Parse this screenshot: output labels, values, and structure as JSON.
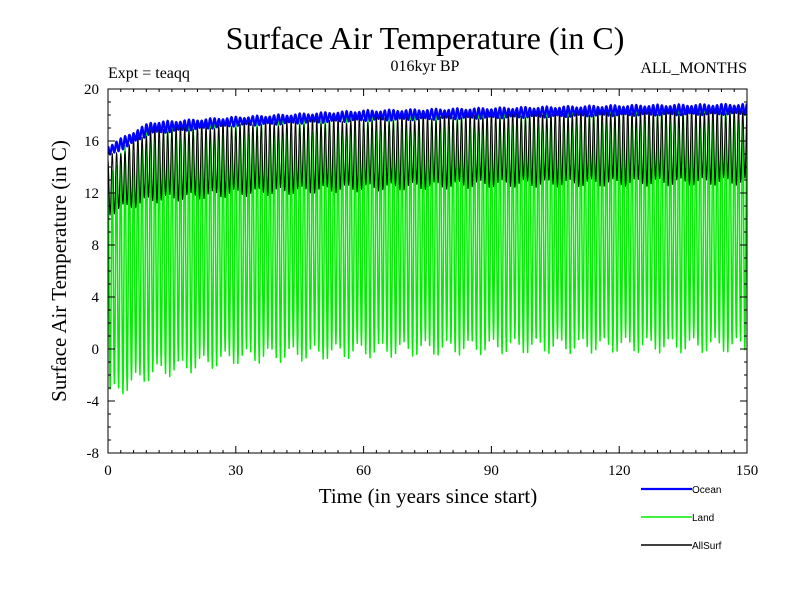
{
  "chart_data": {
    "type": "line",
    "title": "Surface Air Temperature (in C)",
    "experiment_label": "Expt = teaqq",
    "period_label": "016kyr BP",
    "months_label": "ALL_MONTHS",
    "xlabel": "Time (in years since start)",
    "ylabel": "Surface Air Temperature (in C)",
    "xlim": [
      0,
      150
    ],
    "ylim": [
      -8,
      20
    ],
    "x_ticks": [
      0,
      30,
      60,
      90,
      120,
      150
    ],
    "y_ticks": [
      -8,
      -4,
      0,
      4,
      8,
      12,
      16,
      20
    ],
    "x_tick_labels": [
      "0",
      "30",
      "60",
      "90",
      "120",
      "150"
    ],
    "y_tick_labels": [
      "-8",
      "-4",
      "0",
      "4",
      "8",
      "12",
      "16",
      "20"
    ],
    "sampling": "monthly values, seasonal cycle (12 per year)",
    "series": [
      {
        "name": "Ocean",
        "color": "#0000ff",
        "summary_years": [
          0,
          10,
          30,
          60,
          90,
          120,
          150
        ],
        "summer_peak": [
          15.6,
          17.4,
          17.8,
          18.3,
          18.5,
          18.7,
          18.8
        ],
        "winter_trough": [
          14.8,
          16.6,
          17.2,
          17.6,
          17.8,
          18.0,
          18.1
        ]
      },
      {
        "name": "Land",
        "color": "#00ee00",
        "summary_years": [
          0,
          10,
          30,
          60,
          90,
          120,
          150
        ],
        "summer_peak": [
          14.0,
          16.6,
          17.0,
          17.4,
          17.7,
          18.0,
          18.1
        ],
        "winter_trough": [
          -3.5,
          -1.8,
          -0.6,
          -0.1,
          0.2,
          0.3,
          0.3
        ]
      },
      {
        "name": "AllSurf",
        "color": "#000000",
        "summary_years": [
          0,
          10,
          30,
          60,
          90,
          120,
          150
        ],
        "summer_peak": [
          14.5,
          16.9,
          17.3,
          17.7,
          18.0,
          18.3,
          18.4
        ],
        "winter_trough": [
          10.5,
          11.5,
          12.0,
          12.4,
          12.7,
          12.8,
          12.9
        ]
      }
    ],
    "legend_position": "bottom-right"
  }
}
